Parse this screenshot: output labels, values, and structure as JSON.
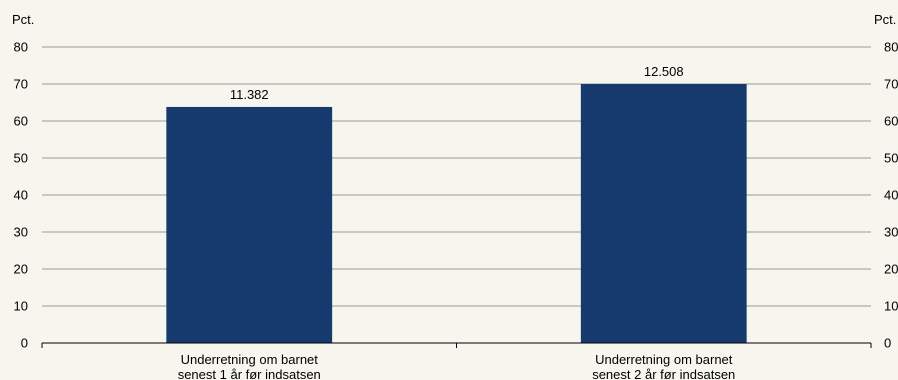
{
  "chart_data": {
    "type": "bar",
    "y_axis_unit_left": "Pct.",
    "y_axis_unit_right": "Pct.",
    "ylim": [
      0,
      80
    ],
    "yticks": [
      0,
      10,
      20,
      30,
      40,
      50,
      60,
      70,
      80
    ],
    "grid": true,
    "categories": [
      [
        "Underretning om barnet",
        "senest 1 år før indsatsen"
      ],
      [
        "Underretning om barnet",
        "senest 2 år før indsatsen"
      ]
    ],
    "values": [
      63.8,
      70.0
    ],
    "data_labels": [
      "11.382",
      "12.508"
    ],
    "bar_color": "#163a6e",
    "gridline_color": "#9a9a9a",
    "axis_color": "#000000",
    "background_color": "#f7f6ee"
  }
}
